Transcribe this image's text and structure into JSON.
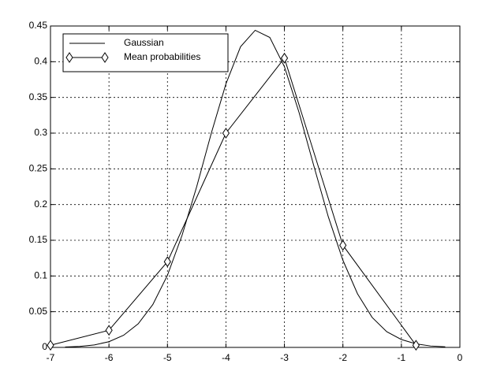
{
  "chart_data": {
    "type": "line",
    "xlim": [
      -7,
      0
    ],
    "ylim": [
      0,
      0.45
    ],
    "xticks": [
      -7,
      -6,
      -5,
      -4,
      -3,
      -2,
      -1,
      0
    ],
    "yticks": [
      0,
      0.05,
      0.1,
      0.15,
      0.2,
      0.25,
      0.3,
      0.35,
      0.4,
      0.45
    ],
    "grid": true,
    "legend": "upper-left",
    "series": [
      {
        "name": "Gaussian",
        "color": "#000000",
        "marker": "none",
        "x": [
          -6.75,
          -6.5,
          -6.25,
          -6,
          -5.75,
          -5.5,
          -5.25,
          -5,
          -4.75,
          -4.5,
          -4.25,
          -4,
          -3.75,
          -3.5,
          -3.25,
          -3,
          -2.75,
          -2.5,
          -2.25,
          -2,
          -1.75,
          -1.5,
          -1.25,
          -1,
          -0.75,
          -0.5,
          -0.25
        ],
        "values": [
          0.0005,
          0.0014,
          0.0035,
          0.008,
          0.017,
          0.033,
          0.06,
          0.101,
          0.157,
          0.225,
          0.3,
          0.369,
          0.421,
          0.444,
          0.434,
          0.393,
          0.329,
          0.255,
          0.183,
          0.122,
          0.075,
          0.042,
          0.022,
          0.011,
          0.005,
          0.002,
          0.0008
        ]
      },
      {
        "name": "Mean probabilities",
        "color": "#000000",
        "marker": "diamond",
        "x": [
          -7,
          -6,
          -5,
          -4,
          -3,
          -2,
          -0.75
        ],
        "values": [
          0.003,
          0.024,
          0.12,
          0.3,
          0.405,
          0.143,
          0.003
        ]
      }
    ]
  }
}
